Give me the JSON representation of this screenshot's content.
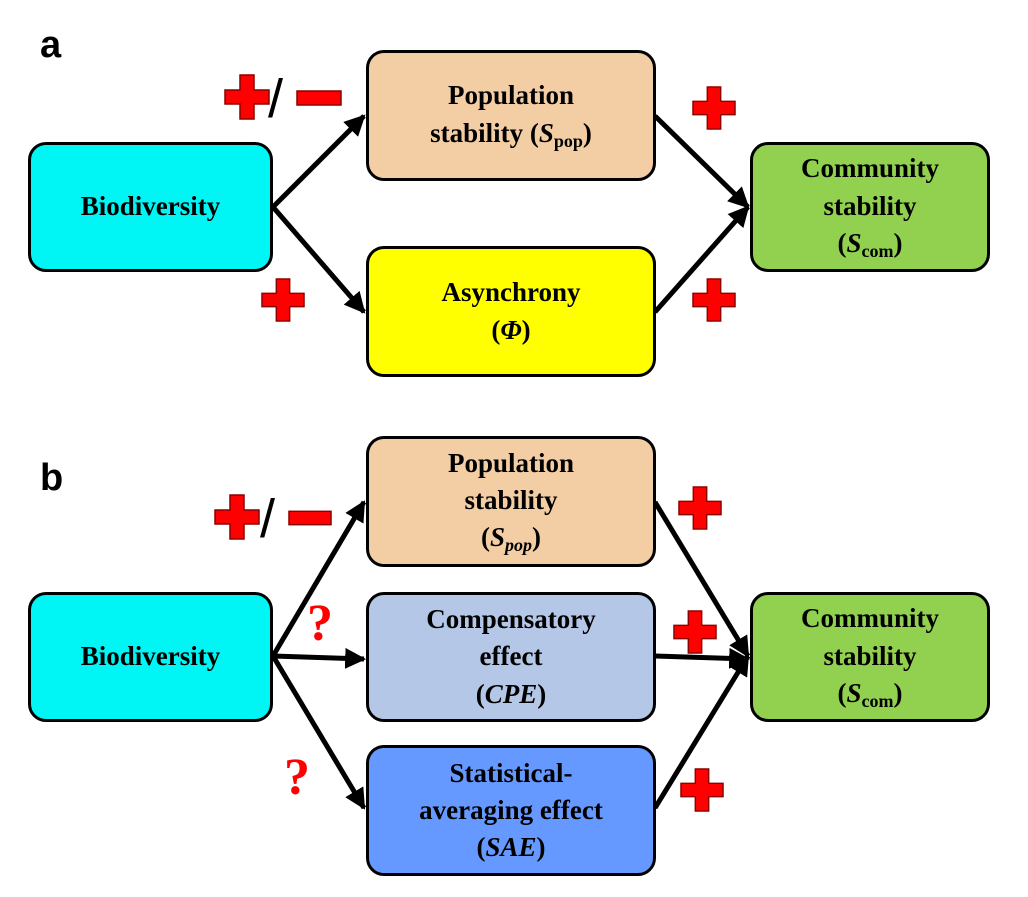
{
  "panel_a": {
    "label": "a",
    "biodiversity": "Biodiversity",
    "population": {
      "line1": "Population",
      "line2": "stability (",
      "symbol": "S",
      "sub": "pop",
      "close": ")"
    },
    "asynchrony": {
      "line1": "Asynchrony",
      "open": "(",
      "symbol": "Φ",
      "close": ")"
    },
    "community": {
      "line1": "Community",
      "line2": "stability",
      "open": "(",
      "symbol": "S",
      "sub": "com",
      "close": ")"
    },
    "slash": "/"
  },
  "panel_b": {
    "label": "b",
    "biodiversity": "Biodiversity",
    "population": {
      "line1": "Population",
      "line2": "stability",
      "open": "(",
      "symbol": "S",
      "sub": "pop",
      "close": ")"
    },
    "compensatory": {
      "line1": "Compensatory",
      "line2": "effect",
      "open": "(",
      "symbol": "CPE",
      "close": ")"
    },
    "statistical": {
      "line1": "Statistical-",
      "line2": "averaging effect",
      "open": "(",
      "symbol": "SAE",
      "close": ")"
    },
    "community": {
      "line1": "Community",
      "line2": "stability",
      "open": "(",
      "symbol": "S",
      "sub": "com",
      "close": ")"
    },
    "slash": "/",
    "question": "?"
  },
  "colors": {
    "biodiversity": "#00f5f5",
    "population": "#f3cda4",
    "asynchrony": "#ffff00",
    "community": "#92d050",
    "compensatory": "#b4c7e7",
    "statistical": "#6699ff",
    "sign": "#ff0000"
  }
}
